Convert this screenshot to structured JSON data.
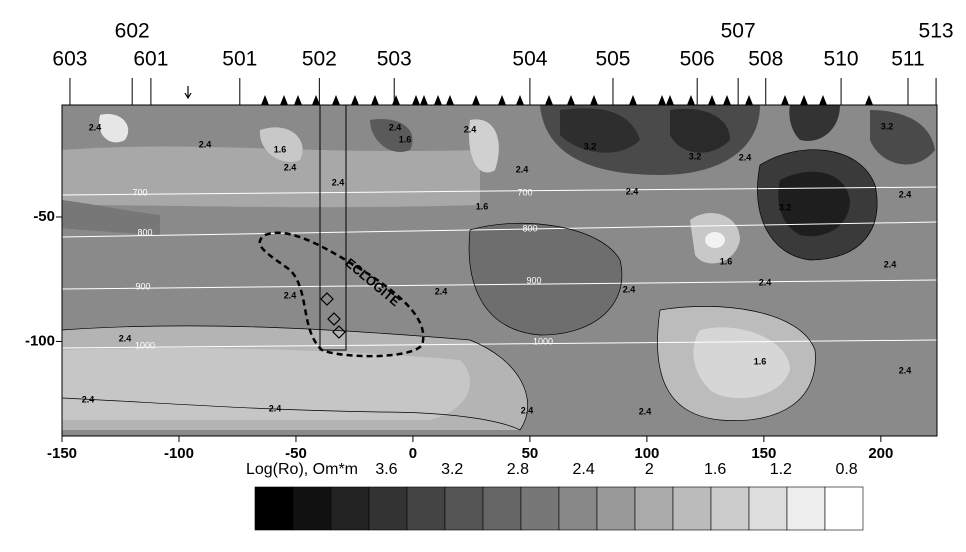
{
  "chart_data": {
    "type": "contour",
    "xlim": [
      -150,
      224
    ],
    "ylim": [
      -138,
      -5
    ],
    "xticks": [
      -150,
      -100,
      -50,
      0,
      50,
      100,
      150,
      200
    ],
    "yticks": [
      -50,
      -100
    ],
    "stations": [
      {
        "name": "603",
        "x": -146.6
      },
      {
        "name": "601",
        "x": -112
      },
      {
        "name": "501",
        "x": -74
      },
      {
        "name": "502",
        "x": -40
      },
      {
        "name": "503",
        "x": -8
      },
      {
        "name": "504",
        "x": 50
      },
      {
        "name": "505",
        "x": 85.5
      },
      {
        "name": "506",
        "x": 121.5
      },
      {
        "name": "508",
        "x": 150.8
      },
      {
        "name": "510",
        "x": 183
      },
      {
        "name": "511",
        "x": 211.6
      }
    ],
    "stations_upper": [
      {
        "name": "602",
        "x": -120
      },
      {
        "name": "507",
        "x": 139
      },
      {
        "name": "513",
        "x": 223.6
      }
    ],
    "contour_labels": [
      "2.4",
      "2.4",
      "1.6",
      "2.4",
      "2.4",
      "1.6",
      "2.4",
      "2.4",
      "1.6",
      "2.4",
      "3.2",
      "2.4",
      "3.2",
      "2.4",
      "3.2",
      "2.4",
      "3.2",
      "1.6",
      "2.4",
      "2.4",
      "2.4",
      "2.4",
      "2.4",
      "2.4",
      "1.6",
      "2.4",
      "2.4",
      "2.4",
      "2.4",
      "2.4"
    ],
    "isotherm_labels": [
      "700",
      "700",
      "800",
      "800",
      "900",
      "900",
      "1000",
      "1000"
    ],
    "annotation": "ECLOGITE",
    "colorbar": {
      "title": "Log(Ro), Om*m",
      "lim": [
        4.4,
        0.7
      ],
      "ticks": [
        3.6,
        3.2,
        2.8,
        2.4,
        2,
        1.6,
        1.2,
        0.8
      ]
    }
  }
}
